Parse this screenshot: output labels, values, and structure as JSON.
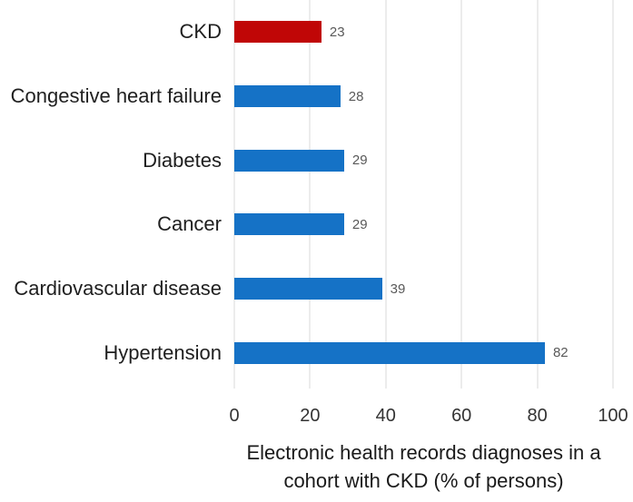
{
  "chart_data": {
    "type": "bar",
    "orientation": "horizontal",
    "categories": [
      "CKD",
      "Congestive heart failure",
      "Diabetes",
      "Cancer",
      "Cardiovascular disease",
      "Hypertension"
    ],
    "values": [
      23,
      28,
      29,
      29,
      39,
      82
    ],
    "bar_colors": [
      "#c00606",
      "#1572c6",
      "#1572c6",
      "#1572c6",
      "#1572c6",
      "#1572c6"
    ],
    "value_labels": [
      "23",
      "28",
      "29",
      "29",
      "39",
      "82"
    ],
    "xlabel": "Electronic health records diagnoses in a cohort with CKD (% of persons)",
    "xlabel_lines": [
      "Electronic health records diagnoses in a",
      "cohort with CKD (% of persons)"
    ],
    "xlim": [
      0,
      100
    ],
    "x_ticks": [
      "0",
      "20",
      "40",
      "60",
      "80",
      "100"
    ],
    "grid": true,
    "legend": "none",
    "colors": {
      "ckd_bar": "#c00606",
      "default_bar": "#1572c6",
      "gridline": "#d9d9d9",
      "value_label_text": "#595959",
      "category_text": "#1f1f1f",
      "tick_text": "#333333",
      "background": "#ffffff"
    }
  }
}
